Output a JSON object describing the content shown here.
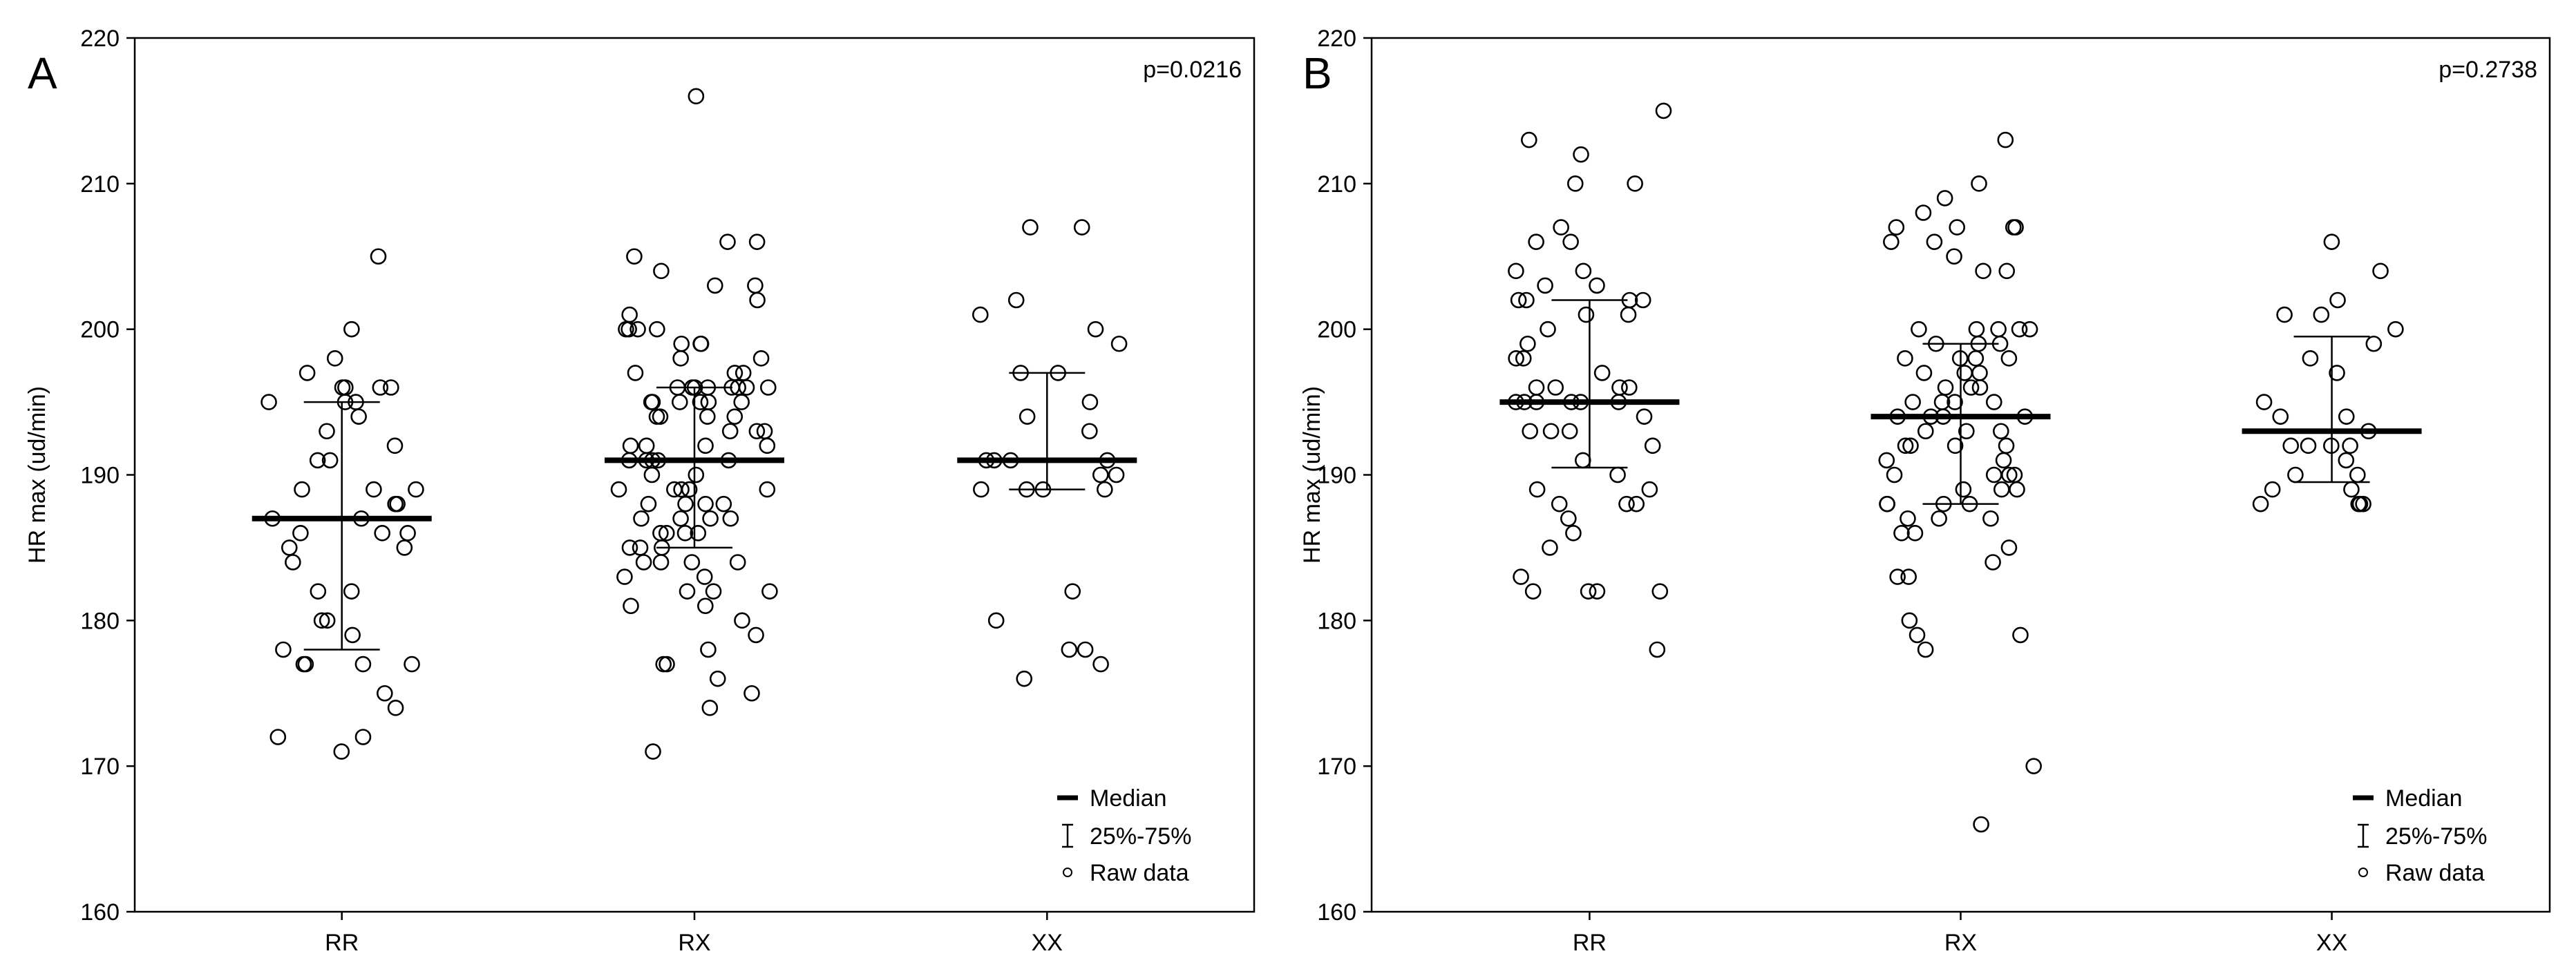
{
  "chart_data": [
    {
      "panel_label": "A",
      "type": "scatter",
      "title": "",
      "xlabel": "",
      "ylabel": "HR max (ud/min)",
      "ylim": [
        160,
        220
      ],
      "y_ticks": [
        "160",
        "170",
        "180",
        "190",
        "200",
        "210",
        "220"
      ],
      "categories": [
        "RR",
        "RX",
        "XX"
      ],
      "annotation": "p=0.0216",
      "legend": {
        "placement": "bottom-right",
        "labels": [
          "Median",
          "25%-75%",
          "Raw data"
        ]
      },
      "groups": [
        {
          "name": "RR",
          "median": 187,
          "q1": 178,
          "q3": 195,
          "points": [
            205,
            200,
            198,
            197,
            196,
            196,
            196,
            196,
            195,
            195,
            195,
            194,
            193,
            192,
            191,
            191,
            189,
            189,
            189,
            188,
            188,
            187,
            187,
            186,
            186,
            186,
            185,
            185,
            184,
            182,
            182,
            180,
            180,
            179,
            178,
            177,
            177,
            177,
            177,
            175,
            174,
            172,
            172,
            171
          ]
        },
        {
          "name": "RX",
          "median": 191,
          "q1": 185,
          "q3": 196,
          "points": [
            216,
            206,
            206,
            205,
            204,
            203,
            203,
            202,
            201,
            200,
            200,
            200,
            200,
            199,
            199,
            199,
            198,
            198,
            197,
            197,
            197,
            196,
            196,
            196,
            196,
            196,
            196,
            196,
            196,
            195,
            195,
            195,
            195,
            195,
            195,
            194,
            194,
            194,
            194,
            193,
            193,
            193,
            192,
            192,
            192,
            192,
            191,
            191,
            191,
            191,
            191,
            190,
            190,
            189,
            189,
            189,
            189,
            189,
            188,
            188,
            188,
            188,
            187,
            187,
            187,
            187,
            186,
            186,
            186,
            186,
            185,
            185,
            185,
            184,
            184,
            184,
            184,
            183,
            183,
            182,
            182,
            182,
            181,
            181,
            180,
            179,
            178,
            177,
            177,
            176,
            175,
            174,
            171
          ]
        },
        {
          "name": "XX",
          "median": 191,
          "q1": 189,
          "q3": 197,
          "points": [
            207,
            207,
            202,
            201,
            200,
            199,
            197,
            197,
            195,
            194,
            193,
            191,
            191,
            191,
            191,
            190,
            190,
            189,
            189,
            189,
            189,
            182,
            180,
            178,
            178,
            177,
            176
          ]
        }
      ]
    },
    {
      "panel_label": "B",
      "type": "scatter",
      "title": "",
      "xlabel": "",
      "ylabel": "HR max (ud/min)",
      "ylim": [
        160,
        220
      ],
      "y_ticks": [
        "160",
        "170",
        "180",
        "190",
        "200",
        "210",
        "220"
      ],
      "categories": [
        "RR",
        "RX",
        "XX"
      ],
      "annotation": "p=0.2738",
      "legend": {
        "placement": "bottom-right",
        "labels": [
          "Median",
          "25%-75%",
          "Raw data"
        ]
      },
      "groups": [
        {
          "name": "RR",
          "median": 195,
          "q1": 190.5,
          "q3": 202,
          "points": [
            215,
            213,
            212,
            210,
            210,
            207,
            206,
            206,
            204,
            204,
            203,
            203,
            202,
            202,
            202,
            202,
            201,
            201,
            200,
            199,
            198,
            198,
            197,
            196,
            196,
            196,
            196,
            195,
            195,
            195,
            195,
            195,
            195,
            194,
            193,
            193,
            193,
            192,
            191,
            190,
            189,
            189,
            188,
            188,
            188,
            187,
            186,
            185,
            183,
            182,
            182,
            182,
            182,
            178
          ]
        },
        {
          "name": "RX",
          "median": 194,
          "q1": 188,
          "q3": 199,
          "points": [
            213,
            210,
            209,
            208,
            207,
            207,
            207,
            207,
            206,
            206,
            205,
            204,
            204,
            200,
            200,
            200,
            200,
            200,
            199,
            199,
            199,
            198,
            198,
            198,
            198,
            197,
            197,
            197,
            196,
            196,
            196,
            195,
            195,
            195,
            195,
            194,
            194,
            194,
            194,
            193,
            193,
            193,
            192,
            192,
            192,
            192,
            191,
            191,
            190,
            190,
            190,
            190,
            189,
            189,
            189,
            188,
            188,
            188,
            188,
            187,
            187,
            187,
            186,
            186,
            185,
            184,
            183,
            183,
            180,
            179,
            179,
            178,
            170,
            166
          ]
        },
        {
          "name": "XX",
          "median": 193,
          "q1": 189.5,
          "q3": 199.5,
          "points": [
            206,
            204,
            202,
            201,
            201,
            200,
            199,
            198,
            197,
            195,
            194,
            194,
            193,
            192,
            192,
            192,
            192,
            191,
            190,
            190,
            189,
            189,
            188,
            188,
            188,
            188
          ]
        }
      ]
    }
  ]
}
